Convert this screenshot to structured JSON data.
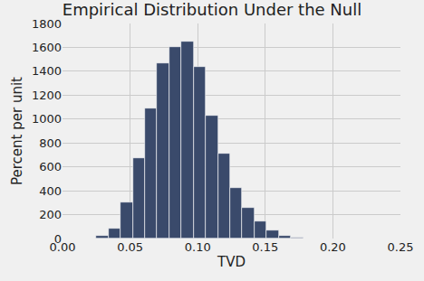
{
  "chart_data": {
    "type": "histogram",
    "title": "Empirical Distribution Under the Null",
    "x_label": "TVD",
    "y_label": "Percent per unit",
    "bins": [
      0.025,
      0.034,
      0.043,
      0.052,
      0.061,
      0.07,
      0.079,
      0.088,
      0.097,
      0.106,
      0.115,
      0.124,
      0.133,
      0.142,
      0.151,
      0.16,
      0.169,
      0.178
    ],
    "values": [
      20,
      80,
      300,
      670,
      1090,
      1470,
      1600,
      1650,
      1440,
      1030,
      710,
      420,
      260,
      140,
      70,
      20,
      5
    ],
    "color": "#3a4a6b",
    "xlim": [
      0,
      0.25
    ],
    "xticks": [
      {
        "value": 0,
        "label": "0.00"
      },
      0.05,
      {
        "value": 0.1,
        "label": "0.10"
      },
      0.15,
      {
        "value": 0.2,
        "label": "0.20"
      },
      0.25
    ],
    "ylim": [
      0,
      1800
    ],
    "yticks": [
      0,
      200,
      400,
      600,
      800,
      1000,
      1200,
      1400,
      1600,
      1800
    ],
    "grid": true
  }
}
